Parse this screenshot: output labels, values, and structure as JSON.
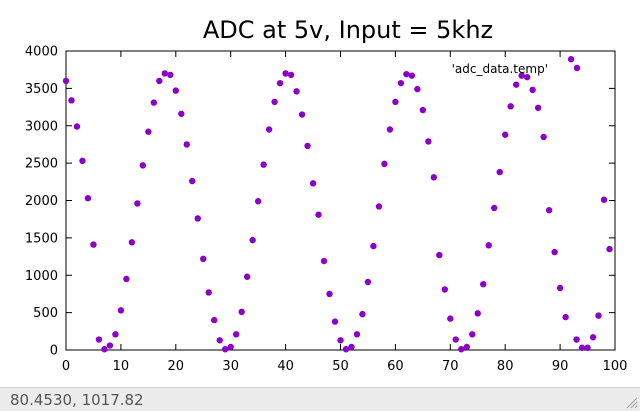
{
  "status_bar": {
    "coordinates": "80.4530, 1017.82"
  },
  "colors": {
    "series": "#8b00c8",
    "border": "#000000",
    "status_bg": "#ececec"
  },
  "chart_data": {
    "type": "scatter",
    "title": "ADC at 5v, Input = 5khz",
    "xlabel": "",
    "ylabel": "",
    "xlim": [
      0,
      100
    ],
    "ylim": [
      0,
      4000
    ],
    "x_ticks": [
      0,
      10,
      20,
      30,
      40,
      50,
      60,
      70,
      80,
      90,
      100
    ],
    "y_ticks": [
      0,
      500,
      1000,
      1500,
      2000,
      2500,
      3000,
      3500,
      4000
    ],
    "grid": false,
    "legend": "top-right",
    "series": [
      {
        "name": "'adc_data.temp'",
        "x": [
          0,
          1,
          2,
          3,
          4,
          5,
          6,
          7,
          8,
          9,
          10,
          11,
          12,
          13,
          14,
          15,
          16,
          17,
          18,
          19,
          20,
          21,
          22,
          23,
          24,
          25,
          26,
          27,
          28,
          29,
          30,
          31,
          32,
          33,
          34,
          35,
          36,
          37,
          38,
          39,
          40,
          41,
          42,
          43,
          44,
          45,
          46,
          47,
          48,
          49,
          50,
          51,
          52,
          53,
          54,
          55,
          56,
          57,
          58,
          59,
          60,
          61,
          62,
          63,
          64,
          65,
          66,
          67,
          68,
          69,
          70,
          71,
          72,
          73,
          74,
          75,
          76,
          77,
          78,
          79,
          80,
          81,
          82,
          83,
          84,
          85,
          86,
          87,
          88,
          89,
          90,
          91,
          92,
          93,
          94,
          95,
          96,
          97,
          98,
          99
        ],
        "y": [
          3600,
          3340,
          2990,
          2530,
          2030,
          1410,
          140,
          10,
          60,
          210,
          530,
          950,
          1440,
          1960,
          2470,
          2920,
          3310,
          3600,
          3700,
          3680,
          3470,
          3160,
          2750,
          2260,
          1760,
          1220,
          770,
          400,
          130,
          10,
          40,
          210,
          510,
          980,
          1470,
          1990,
          2480,
          2950,
          3320,
          3570,
          3700,
          3680,
          3460,
          3150,
          2730,
          2230,
          1810,
          1190,
          750,
          380,
          130,
          10,
          40,
          210,
          480,
          910,
          1390,
          1920,
          2490,
          2950,
          3320,
          3570,
          3690,
          3670,
          3490,
          3210,
          2790,
          2310,
          1270,
          810,
          420,
          140,
          10,
          40,
          210,
          490,
          880,
          1400,
          1900,
          2380,
          2880,
          3260,
          3550,
          3670,
          3650,
          3480,
          3240,
          2850,
          1870,
          1310,
          830,
          440,
          3890,
          140,
          30,
          30,
          170,
          460,
          2010,
          1350
        ]
      }
    ]
  }
}
